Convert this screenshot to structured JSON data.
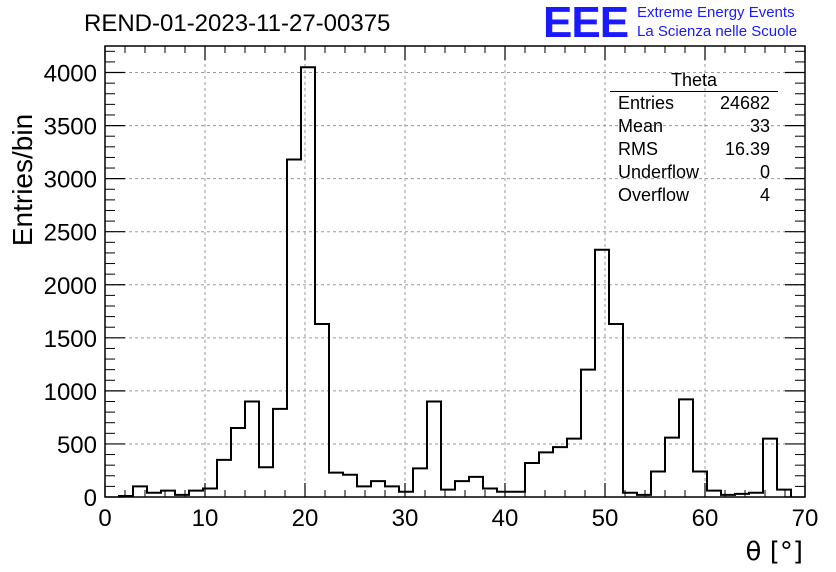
{
  "header": {
    "title": "REND-01-2023-11-27-00375",
    "logo_text": "EEE",
    "logo_line1": "Extreme Energy Events",
    "logo_line2": "La Scienza nelle Scuole"
  },
  "stats": {
    "title": "Theta",
    "rows": [
      {
        "label": "Entries",
        "value": "24682"
      },
      {
        "label": "Mean",
        "value": "33"
      },
      {
        "label": "RMS",
        "value": "16.39"
      },
      {
        "label": "Underflow",
        "value": "0"
      },
      {
        "label": "Overflow",
        "value": "4"
      }
    ]
  },
  "chart_data": {
    "type": "bar",
    "subtype": "step-histogram",
    "xlabel": "θ [°]",
    "ylabel": "Entries/bin",
    "xlim": [
      0,
      70
    ],
    "ylim": [
      0,
      4250
    ],
    "xticks": [
      0,
      10,
      20,
      30,
      40,
      50,
      60,
      70
    ],
    "yticks": [
      0,
      500,
      1000,
      1500,
      2000,
      2500,
      3000,
      3500,
      4000
    ],
    "grid": true,
    "bin_width": 1.4,
    "bin_start": 1.4,
    "values": [
      10,
      100,
      40,
      60,
      20,
      60,
      80,
      350,
      650,
      900,
      280,
      830,
      3180,
      4050,
      1630,
      230,
      210,
      100,
      150,
      100,
      50,
      270,
      900,
      70,
      150,
      190,
      80,
      50,
      50,
      320,
      420,
      470,
      550,
      1200,
      2330,
      1630,
      40,
      20,
      240,
      560,
      920,
      240,
      60,
      20,
      30,
      40,
      550,
      70
    ],
    "color": "#000000"
  }
}
